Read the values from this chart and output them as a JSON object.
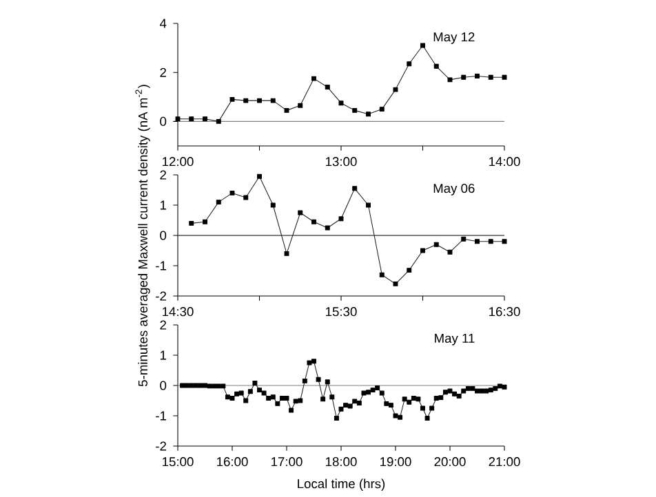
{
  "chart_data": [
    {
      "type": "line",
      "annotations": [
        "May 12"
      ],
      "color": "#222222",
      "marker": "square",
      "line_style": "solid",
      "x": [
        12.0,
        12.0833,
        12.1667,
        12.25,
        12.3333,
        12.4167,
        12.5,
        12.5833,
        12.6667,
        12.75,
        12.8333,
        12.9167,
        13.0,
        13.0833,
        13.1667,
        13.25,
        13.3333,
        13.4167,
        13.5,
        13.5833,
        13.6667,
        13.75,
        13.8333,
        13.9167,
        14.0
      ],
      "values": [
        0.1,
        0.1,
        0.1,
        0.0,
        0.9,
        0.85,
        0.85,
        0.85,
        0.45,
        0.65,
        1.75,
        1.4,
        0.75,
        0.45,
        0.3,
        0.5,
        1.3,
        2.35,
        3.1,
        2.25,
        1.7,
        1.8,
        1.85,
        1.8,
        1.8
      ],
      "xlim": [
        12,
        14
      ],
      "ylim": [
        -1,
        4
      ],
      "xticks": [
        {
          "value": 12,
          "label": "12:00"
        },
        {
          "value": 12.5,
          "label": null
        },
        {
          "value": 13,
          "label": "13:00"
        },
        {
          "value": 13.5,
          "label": null
        },
        {
          "value": 14,
          "label": "14:00"
        }
      ],
      "yticks": [
        0,
        2,
        4
      ],
      "ref_lines": [
        {
          "axis": "y",
          "value": 0,
          "color": "#808080"
        }
      ]
    },
    {
      "type": "line",
      "annotations": [
        "May 06"
      ],
      "color": "#222222",
      "marker": "square",
      "line_style": "solid",
      "ylabel": "5-minutes averaged Maxwell current density (nA m$^{-2}$)",
      "x": [
        14.5833,
        14.6667,
        14.75,
        14.8333,
        14.9167,
        15.0,
        15.0833,
        15.1667,
        15.25,
        15.3333,
        15.4167,
        15.5,
        15.5833,
        15.6667,
        15.75,
        15.8333,
        15.9167,
        16.0,
        16.0833,
        16.1667,
        16.25,
        16.3333,
        16.4167,
        16.5
      ],
      "values": [
        0.4,
        0.45,
        1.1,
        1.4,
        1.25,
        1.95,
        1.0,
        -0.6,
        0.75,
        0.45,
        0.25,
        0.55,
        1.55,
        1.0,
        -1.3,
        -1.6,
        -1.15,
        -0.5,
        -0.3,
        -0.55,
        -0.12,
        -0.2,
        -0.2,
        -0.2
      ],
      "xlim": [
        14.5,
        16.5
      ],
      "ylim": [
        -2,
        2
      ],
      "xticks": [
        {
          "value": 14.5,
          "label": "14:30"
        },
        {
          "value": 15,
          "label": null
        },
        {
          "value": 15.5,
          "label": "15:30"
        },
        {
          "value": 16,
          "label": null
        },
        {
          "value": 16.5,
          "label": "16:30"
        }
      ],
      "yticks": [
        -2,
        -1,
        0,
        1,
        2
      ],
      "ref_lines": [
        {
          "axis": "y",
          "value": 0,
          "color": "#000000"
        }
      ]
    },
    {
      "type": "line",
      "annotations": [
        "May 11"
      ],
      "color": "#222222",
      "marker": "square",
      "line_style": "solid",
      "xlabel": "Local time (hrs)",
      "x": [
        15.0833,
        15.1667,
        15.25,
        15.3333,
        15.4167,
        15.5,
        15.5833,
        15.6667,
        15.75,
        15.8333,
        15.9167,
        16.0,
        16.0833,
        16.1667,
        16.25,
        16.3333,
        16.4167,
        16.5,
        16.5833,
        16.6667,
        16.75,
        16.8333,
        16.9167,
        17.0,
        17.0833,
        17.1667,
        17.25,
        17.3333,
        17.4167,
        17.5,
        17.5833,
        17.6667,
        17.75,
        17.8333,
        17.9167,
        18.0,
        18.0833,
        18.1667,
        18.25,
        18.3333,
        18.4167,
        18.5,
        18.5833,
        18.6667,
        18.75,
        18.8333,
        18.9167,
        19.0,
        19.0833,
        19.1667,
        19.25,
        19.3333,
        19.4167,
        19.5,
        19.5833,
        19.6667,
        19.75,
        19.8333,
        19.9167,
        20.0,
        20.0833,
        20.1667,
        20.25,
        20.3333,
        20.4167,
        20.5,
        20.5833,
        20.6667,
        20.75,
        20.8333,
        20.9167,
        21.0
      ],
      "values": [
        0,
        0,
        0,
        0,
        0,
        0,
        -0.02,
        -0.02,
        -0.02,
        -0.02,
        -0.38,
        -0.42,
        -0.28,
        -0.25,
        -0.5,
        -0.2,
        0.08,
        -0.15,
        -0.25,
        -0.42,
        -0.38,
        -0.6,
        -0.42,
        -0.42,
        -0.82,
        -0.52,
        -0.5,
        0.15,
        0.75,
        0.8,
        0.2,
        -0.45,
        0.12,
        -0.38,
        -1.08,
        -0.78,
        -0.65,
        -0.68,
        -0.52,
        -0.58,
        -0.25,
        -0.22,
        -0.15,
        -0.08,
        -0.25,
        -0.6,
        -0.65,
        -1.0,
        -1.05,
        -0.45,
        -0.55,
        -0.42,
        -0.45,
        -0.75,
        -1.08,
        -0.75,
        -0.42,
        -0.4,
        -0.22,
        -0.18,
        -0.28,
        -0.35,
        -0.18,
        -0.1,
        -0.1,
        -0.18,
        -0.18,
        -0.18,
        -0.15,
        -0.1,
        -0.02,
        -0.05
      ],
      "xlim": [
        15,
        21
      ],
      "ylim": [
        -2,
        2
      ],
      "xticks": [
        {
          "value": 15,
          "label": "15:00"
        },
        {
          "value": 16,
          "label": "16:00"
        },
        {
          "value": 17,
          "label": "17:00"
        },
        {
          "value": 18,
          "label": "18:00"
        },
        {
          "value": 19,
          "label": "19:00"
        },
        {
          "value": 20,
          "label": "20:00"
        },
        {
          "value": 21,
          "label": "21:00"
        }
      ],
      "yticks": [
        -2,
        -1,
        0,
        1,
        2
      ],
      "ref_lines": [
        {
          "axis": "y",
          "value": 0,
          "color": "#808080"
        }
      ]
    }
  ]
}
